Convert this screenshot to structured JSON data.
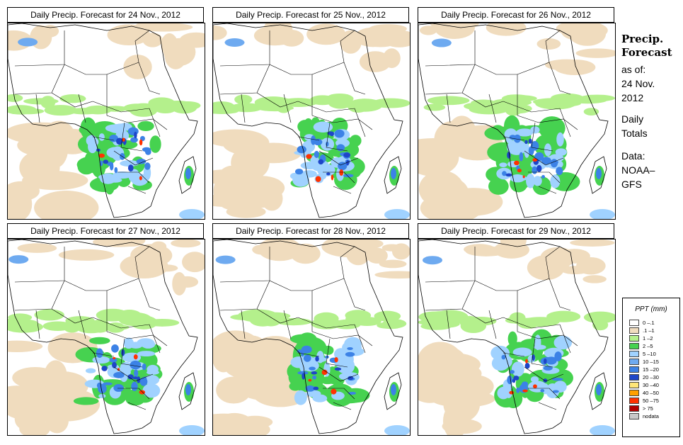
{
  "panels": [
    {
      "title": "Daily Precip. Forecast for  24 Nov., 2012"
    },
    {
      "title": "Daily Precip. Forecast for  25 Nov., 2012"
    },
    {
      "title": "Daily Precip. Forecast for  26 Nov., 2012"
    },
    {
      "title": "Daily Precip. Forecast for  27 Nov., 2012"
    },
    {
      "title": "Daily Precip. Forecast for  28 Nov., 2012"
    },
    {
      "title": "Daily Precip. Forecast for  29 Nov., 2012"
    }
  ],
  "sidebar": {
    "title1": "Precip.",
    "title2": "Forecast",
    "asof": "as of:",
    "date1": "24 Nov.",
    "date2": "2012",
    "daily1": "Daily",
    "daily2": "Totals",
    "data1": "Data:",
    "data2": "NOAA–",
    "data3": "GFS"
  },
  "legend": {
    "title": "PPT (mm)",
    "items": [
      {
        "label": "0 –.1",
        "color": "#ffffff"
      },
      {
        "label": ".1 –1",
        "color": "#f0dcbe"
      },
      {
        "label": "1 –2",
        "color": "#b4f08c"
      },
      {
        "label": "2 –5",
        "color": "#46d250"
      },
      {
        "label": "5 –10",
        "color": "#a0d2ff"
      },
      {
        "label": "10 –15",
        "color": "#6eaaf0"
      },
      {
        "label": "15 –20",
        "color": "#3c82e6"
      },
      {
        "label": "20 –30",
        "color": "#1e46c8"
      },
      {
        "label": "30 –40",
        "color": "#ffe678"
      },
      {
        "label": "40 –50",
        "color": "#ffa000"
      },
      {
        "label": "50 –75",
        "color": "#ff3200"
      },
      {
        "label": "> 75",
        "color": "#b40000"
      },
      {
        "label": "nodata",
        "color": "#c8c8c8"
      }
    ]
  }
}
